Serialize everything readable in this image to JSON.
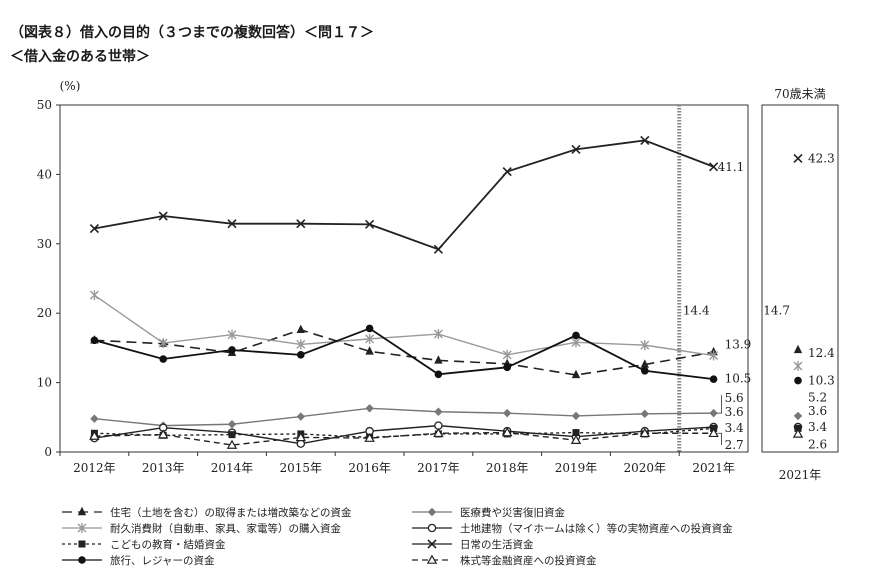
{
  "header": {
    "title": "（図表８）借入の目的（３つまでの複数回答）＜問１７＞",
    "subtitle": "＜借入金のある世帯＞"
  },
  "chart_data": {
    "type": "line",
    "ylabel": "(%)",
    "ylim": [
      0,
      50
    ],
    "yticks": [
      0,
      10,
      20,
      30,
      40,
      50
    ],
    "categories": [
      "2012年",
      "2013年",
      "2014年",
      "2015年",
      "2016年",
      "2017年",
      "2018年",
      "2019年",
      "2020年",
      "2021年"
    ],
    "inset": {
      "title": "70歳未満",
      "category": "2021年"
    },
    "series": [
      {
        "key": "housing",
        "name": "住宅（土地を含む）の取得または増改築などの資金",
        "marker": "triangle",
        "dash": "10,6",
        "color": "#222222",
        "values": [
          16.1,
          15.6,
          14.3,
          17.6,
          14.5,
          13.2,
          12.7,
          11.1,
          12.6,
          14.4
        ],
        "label": "14.4",
        "inset_value": 14.7
      },
      {
        "key": "medical",
        "name": "医療費や災害復旧資金",
        "marker": "diamond",
        "dash": "",
        "color": "#777777",
        "values": [
          4.8,
          3.8,
          4.0,
          5.1,
          6.3,
          5.8,
          5.6,
          5.2,
          5.5,
          5.6
        ],
        "label": "5.6",
        "inset_value": 5.2
      },
      {
        "key": "durables",
        "name": "耐久消費財（自動車、家具、家電等）の購入資金",
        "marker": "star",
        "dash": "",
        "color": "#999999",
        "values": [
          22.6,
          15.7,
          16.9,
          15.5,
          16.3,
          17.0,
          14.0,
          15.8,
          15.4,
          13.9
        ],
        "label": "13.9",
        "inset_value": 12.4
      },
      {
        "key": "realestate",
        "name": "土地建物（マイホームは除く）等の実物資産への投資資金",
        "marker": "circle-open",
        "dash": "",
        "color": "#222222",
        "values": [
          2.0,
          3.5,
          2.8,
          1.2,
          3.0,
          3.8,
          3.0,
          2.2,
          3.0,
          3.6
        ],
        "label": "3.6",
        "inset_value": 3.6
      },
      {
        "key": "education",
        "name": "こどもの教育・結婚資金",
        "marker": "square",
        "dash": "3,3",
        "color": "#222222",
        "values": [
          2.7,
          2.4,
          2.5,
          2.6,
          2.1,
          2.6,
          2.6,
          2.8,
          2.6,
          3.4
        ],
        "label": "3.4",
        "inset_value": 3.4
      },
      {
        "key": "living",
        "name": "日常の生活資金",
        "marker": "x",
        "dash": "",
        "color": "#222222",
        "values": [
          32.2,
          34.0,
          32.9,
          32.9,
          32.8,
          29.2,
          40.4,
          43.6,
          44.9,
          41.1
        ],
        "label": "41.1",
        "inset_value": 42.3
      },
      {
        "key": "travel",
        "name": "旅行、レジャーの資金",
        "marker": "circle-filled",
        "dash": "",
        "color": "#111111",
        "values": [
          16.1,
          13.4,
          14.7,
          14.0,
          17.8,
          11.2,
          12.2,
          16.8,
          11.7,
          10.5
        ],
        "label": "10.5",
        "inset_value": 10.3
      },
      {
        "key": "stocks",
        "name": "株式等金融資産への投資資金",
        "marker": "triangle-open",
        "dash": "6,4",
        "color": "#222222",
        "values": [
          2.3,
          2.5,
          1.0,
          2.1,
          2.0,
          2.7,
          2.8,
          1.7,
          2.7,
          2.7
        ],
        "label": "2.7",
        "inset_value": 2.6
      }
    ]
  }
}
